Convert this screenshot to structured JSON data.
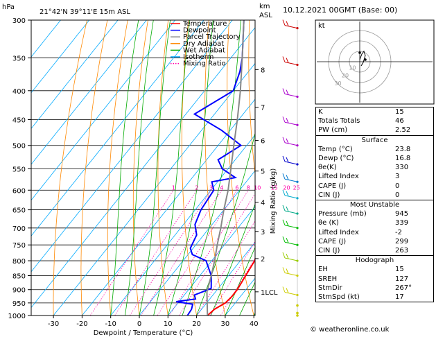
{
  "header": {
    "pressure_unit": "hPa",
    "location": "21°42'N  39°11'E  15m  ASL",
    "height_unit_1": "km",
    "height_unit_2": "ASL",
    "datetime": "10.12.2021  00GMT  (Base: 00)"
  },
  "chart_data": {
    "type": "line",
    "xlabel": "Dewpoint / Temperature (°C)",
    "ylabel_right": "Mixing Ratio (g/kg)",
    "xlim": [
      -35,
      40
    ],
    "x_ticks": [
      -30,
      -20,
      -10,
      0,
      10,
      20,
      30,
      40
    ],
    "pressure_levels": [
      300,
      350,
      400,
      450,
      500,
      550,
      600,
      650,
      700,
      750,
      800,
      850,
      900,
      950,
      1000
    ],
    "km_labels": [
      {
        "km": "8",
        "p": 367
      },
      {
        "km": "7",
        "p": 428
      },
      {
        "km": "6",
        "p": 490
      },
      {
        "km": "5",
        "p": 555
      },
      {
        "km": "4",
        "p": 630
      },
      {
        "km": "3",
        "p": 710
      },
      {
        "km": "2",
        "p": 793
      },
      {
        "km": "1LCL",
        "p": 908
      }
    ],
    "mixing_ratio_labels": [
      "1",
      "2",
      "3",
      "4",
      "6",
      "8",
      "10",
      "15",
      "20",
      "25"
    ],
    "legend": [
      {
        "name": "Temperature",
        "color": "#ff0000"
      },
      {
        "name": "Dewpoint",
        "color": "#0000ff"
      },
      {
        "name": "Parcel Trajectory",
        "color": "#888888"
      },
      {
        "name": "Dry Adiabat",
        "color": "#ff8800"
      },
      {
        "name": "Wet Adiabat",
        "color": "#00aa00"
      },
      {
        "name": "Isotherm",
        "color": "#00aaff"
      },
      {
        "name": "Mixing Ratio",
        "color": "#ff00aa"
      }
    ],
    "series": [
      {
        "name": "Temperature",
        "color": "#ff0000",
        "points": [
          [
            1000,
            23.8
          ],
          [
            975,
            24.5
          ],
          [
            950,
            26.5
          ],
          [
            925,
            27
          ],
          [
            900,
            27
          ],
          [
            850,
            26
          ],
          [
            800,
            25
          ],
          [
            750,
            22.5
          ],
          [
            700,
            18
          ],
          [
            650,
            13
          ],
          [
            600,
            8
          ],
          [
            550,
            3
          ],
          [
            500,
            -4
          ],
          [
            450,
            -11
          ],
          [
            425,
            -14
          ],
          [
            400,
            -19
          ],
          [
            350,
            -28
          ],
          [
            300,
            -38
          ]
        ]
      },
      {
        "name": "Dewpoint",
        "color": "#0000ff",
        "points": [
          [
            1000,
            16.8
          ],
          [
            975,
            16.5
          ],
          [
            955,
            15.5
          ],
          [
            945,
            9
          ],
          [
            935,
            15
          ],
          [
            920,
            13.5
          ],
          [
            905,
            16
          ],
          [
            895,
            17.5
          ],
          [
            850,
            14
          ],
          [
            800,
            8
          ],
          [
            780,
            1.5
          ],
          [
            760,
            -1
          ],
          [
            720,
            -2.5
          ],
          [
            690,
            -6
          ],
          [
            650,
            -8
          ],
          [
            600,
            -9
          ],
          [
            580,
            -12
          ],
          [
            570,
            -5
          ],
          [
            550,
            -12
          ],
          [
            530,
            -16
          ],
          [
            500,
            -12
          ],
          [
            470,
            -23
          ],
          [
            440,
            -37
          ],
          [
            400,
            -30
          ],
          [
            370,
            -33
          ],
          [
            350,
            -36
          ],
          [
            300,
            -46
          ]
        ]
      },
      {
        "name": "Parcel Trajectory",
        "color": "#888888",
        "points": [
          [
            1000,
            23.8
          ],
          [
            908,
            17
          ],
          [
            850,
            14
          ],
          [
            800,
            11
          ],
          [
            750,
            7.5
          ],
          [
            700,
            4
          ],
          [
            650,
            0
          ],
          [
            600,
            -4
          ],
          [
            550,
            -9
          ],
          [
            500,
            -14.5
          ],
          [
            450,
            -20.5
          ],
          [
            400,
            -27.5
          ],
          [
            350,
            -36
          ],
          [
            300,
            -46
          ]
        ]
      }
    ]
  },
  "hodograph": {
    "label": "kt",
    "ring_labels": [
      "10",
      "20",
      "30"
    ]
  },
  "indices": {
    "rows": [
      {
        "label": "K",
        "value": "15"
      },
      {
        "label": "Totals Totals",
        "value": "46"
      },
      {
        "label": "PW (cm)",
        "value": "2.52"
      }
    ]
  },
  "surface": {
    "title": "Surface",
    "rows": [
      {
        "label": "Temp (°C)",
        "value": "23.8"
      },
      {
        "label": "Dewp (°C)",
        "value": "16.8"
      },
      {
        "label": "θe(K)",
        "value": "330"
      },
      {
        "label": "Lifted Index",
        "value": "3"
      },
      {
        "label": "CAPE (J)",
        "value": "0"
      },
      {
        "label": "CIN (J)",
        "value": "0"
      }
    ]
  },
  "unstable": {
    "title": "Most Unstable",
    "rows": [
      {
        "label": "Pressure (mb)",
        "value": "945"
      },
      {
        "label": "θe (K)",
        "value": "339"
      },
      {
        "label": "Lifted Index",
        "value": "-2"
      },
      {
        "label": "CAPE (J)",
        "value": "299"
      },
      {
        "label": "CIN (J)",
        "value": "263"
      }
    ]
  },
  "hodo_stats": {
    "title": "Hodograph",
    "rows": [
      {
        "label": "EH",
        "value": "15"
      },
      {
        "label": "SREH",
        "value": "127"
      },
      {
        "label": "StmDir",
        "value": "267°"
      },
      {
        "label": "StmSpd (kt)",
        "value": "17"
      }
    ]
  },
  "footer": "© weatheronline.co.uk"
}
